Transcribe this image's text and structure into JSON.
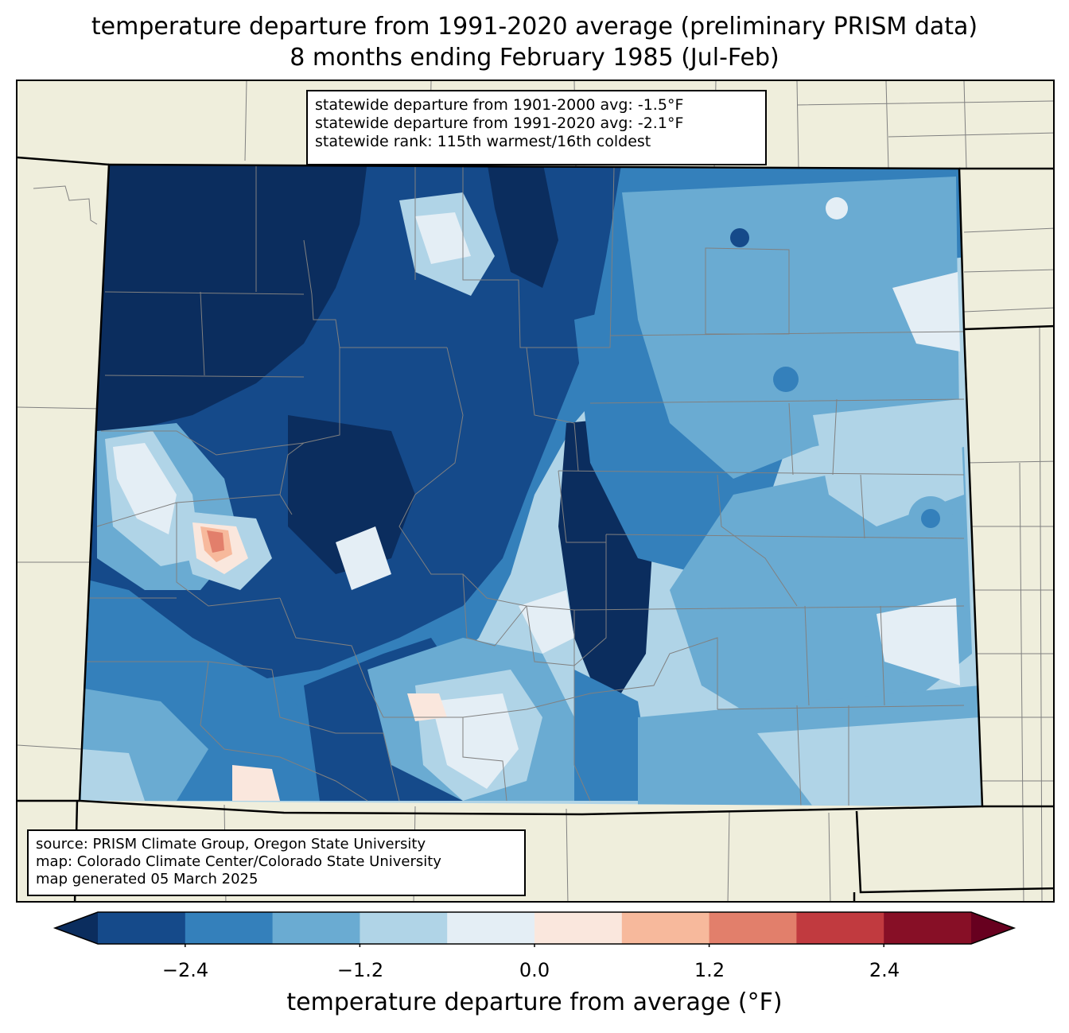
{
  "title": {
    "line1": "temperature departure from 1991-2020 average (preliminary PRISM data)",
    "line2": "8 months ending February 1985 (Jul-Feb)"
  },
  "stats_box": {
    "line1": "statewide departure from 1901-2000 avg: -1.5°F",
    "line2": "statewide departure from 1991-2020 avg: -2.1°F",
    "line3": "statewide rank: 115th warmest/16th coldest"
  },
  "source_box": {
    "line1": "source: PRISM Climate Group, Oregon State University",
    "line2": "map: Colorado Climate Center/Colorado State University",
    "line3": "map generated 05 March 2025"
  },
  "colorbar": {
    "label": "temperature departure from average (°F)",
    "ticks": [
      "−2.4",
      "−1.2",
      "0.0",
      "1.2",
      "2.4"
    ],
    "bins": [
      {
        "from": -3.0,
        "to": -2.4,
        "color": "#154a8a"
      },
      {
        "from": -2.4,
        "to": -1.8,
        "color": "#3480bb"
      },
      {
        "from": -1.8,
        "to": -1.2,
        "color": "#6aabd2"
      },
      {
        "from": -1.2,
        "to": -0.6,
        "color": "#b0d4e7"
      },
      {
        "from": -0.6,
        "to": 0.0,
        "color": "#e4eef5"
      },
      {
        "from": 0.0,
        "to": 0.6,
        "color": "#fae7dd"
      },
      {
        "from": 0.6,
        "to": 1.2,
        "color": "#f7b99c"
      },
      {
        "from": 1.2,
        "to": 1.8,
        "color": "#e27f6b"
      },
      {
        "from": 1.8,
        "to": 2.4,
        "color": "#c13a3f"
      },
      {
        "from": 2.4,
        "to": 3.0,
        "color": "#870f26"
      }
    ],
    "under_color": "#0b2d5e",
    "over_color": "#67001f"
  },
  "map_colors": {
    "background": "#efeedc",
    "county_lines": "#808080",
    "state_lines": "#000000"
  }
}
